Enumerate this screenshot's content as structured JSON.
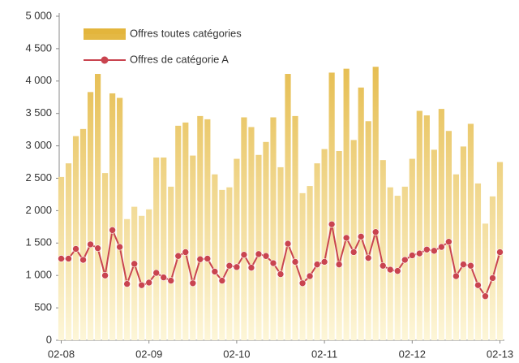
{
  "chart_data": {
    "type": "bar",
    "categories": [
      "02-08",
      null,
      null,
      null,
      null,
      null,
      null,
      null,
      null,
      null,
      null,
      null,
      "02-09",
      null,
      null,
      null,
      null,
      null,
      null,
      null,
      null,
      null,
      null,
      null,
      "02-10",
      null,
      null,
      null,
      null,
      null,
      null,
      null,
      null,
      null,
      null,
      null,
      "02-11",
      null,
      null,
      null,
      null,
      null,
      null,
      null,
      null,
      null,
      null,
      null,
      "02-12",
      null,
      null,
      null,
      null,
      null,
      null,
      null,
      null,
      null,
      null,
      null,
      "02-13"
    ],
    "series": [
      {
        "name": "Offres toutes catégories",
        "type": "bar",
        "color": "#e2b43a",
        "values": [
          2520,
          2730,
          3150,
          3260,
          3830,
          4110,
          2580,
          3810,
          3740,
          1870,
          2060,
          1920,
          2020,
          2820,
          2820,
          2370,
          3310,
          3360,
          2850,
          3460,
          3410,
          2560,
          2320,
          2360,
          2800,
          3440,
          3290,
          2860,
          3060,
          3440,
          2670,
          4110,
          3460,
          2270,
          2380,
          2730,
          2950,
          4130,
          2920,
          4190,
          3090,
          3900,
          3380,
          4220,
          2780,
          2360,
          2230,
          2370,
          2800,
          3540,
          3470,
          2940,
          3570,
          3230,
          2560,
          2990,
          3340,
          2420,
          1800,
          2220,
          2750
        ]
      },
      {
        "name": "Offres de catégorie A",
        "type": "line",
        "color": "#c9444f",
        "values": [
          1260,
          1260,
          1410,
          1240,
          1480,
          1420,
          1000,
          1700,
          1440,
          870,
          1180,
          850,
          890,
          1040,
          970,
          920,
          1300,
          1360,
          880,
          1250,
          1260,
          1060,
          920,
          1150,
          1130,
          1320,
          1120,
          1330,
          1300,
          1190,
          1020,
          1490,
          1210,
          880,
          990,
          1170,
          1210,
          1790,
          1170,
          1580,
          1360,
          1600,
          1270,
          1670,
          1150,
          1090,
          1070,
          1240,
          1310,
          1340,
          1400,
          1380,
          1440,
          1520,
          990,
          1170,
          1150,
          850,
          680,
          960,
          1360
        ]
      }
    ],
    "ylim": [
      0,
      5000
    ],
    "yticks": [
      0,
      500,
      {
        "value": 1000,
        "label": "1 000"
      },
      {
        "value": 1500,
        "label": "1 500"
      },
      {
        "value": 2000,
        "label": "2 000"
      },
      {
        "value": 2500,
        "label": "2 500"
      },
      {
        "value": 3000,
        "label": "3 000"
      },
      {
        "value": 3500,
        "label": "3 500"
      },
      {
        "value": 4000,
        "label": "4 000"
      },
      {
        "value": 4500,
        "label": "4 500"
      },
      {
        "value": 5000,
        "label": "5 000"
      }
    ],
    "grid": false,
    "legend": "upper-left"
  }
}
